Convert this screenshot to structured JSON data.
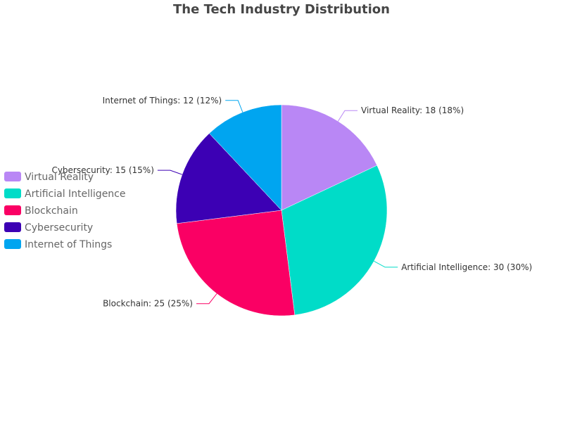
{
  "chart_data": {
    "type": "pie",
    "title": "The Tech Industry Distribution",
    "categories": [
      "Virtual Reality",
      "Artificial Intelligence",
      "Blockchain",
      "Cybersecurity",
      "Internet of Things"
    ],
    "values": [
      18,
      30,
      25,
      15,
      12
    ],
    "percents": [
      "18%",
      "30%",
      "25%",
      "15%",
      "12%"
    ],
    "labels": [
      "Virtual Reality: 18 (18%)",
      "Artificial Intelligence: 30 (30%)",
      "Blockchain: 25 (25%)",
      "Cybersecurity: 15 (15%)",
      "Internet of Things: 12 (12%)"
    ],
    "colors": [
      "#B987F5",
      "#00DCC8",
      "#FA0064",
      "#3C00B4",
      "#00A5F0"
    ],
    "legend": {
      "position": "left",
      "items": [
        "Virtual Reality",
        "Artificial Intelligence",
        "Blockchain",
        "Cybersecurity",
        "Internet of Things"
      ]
    }
  }
}
